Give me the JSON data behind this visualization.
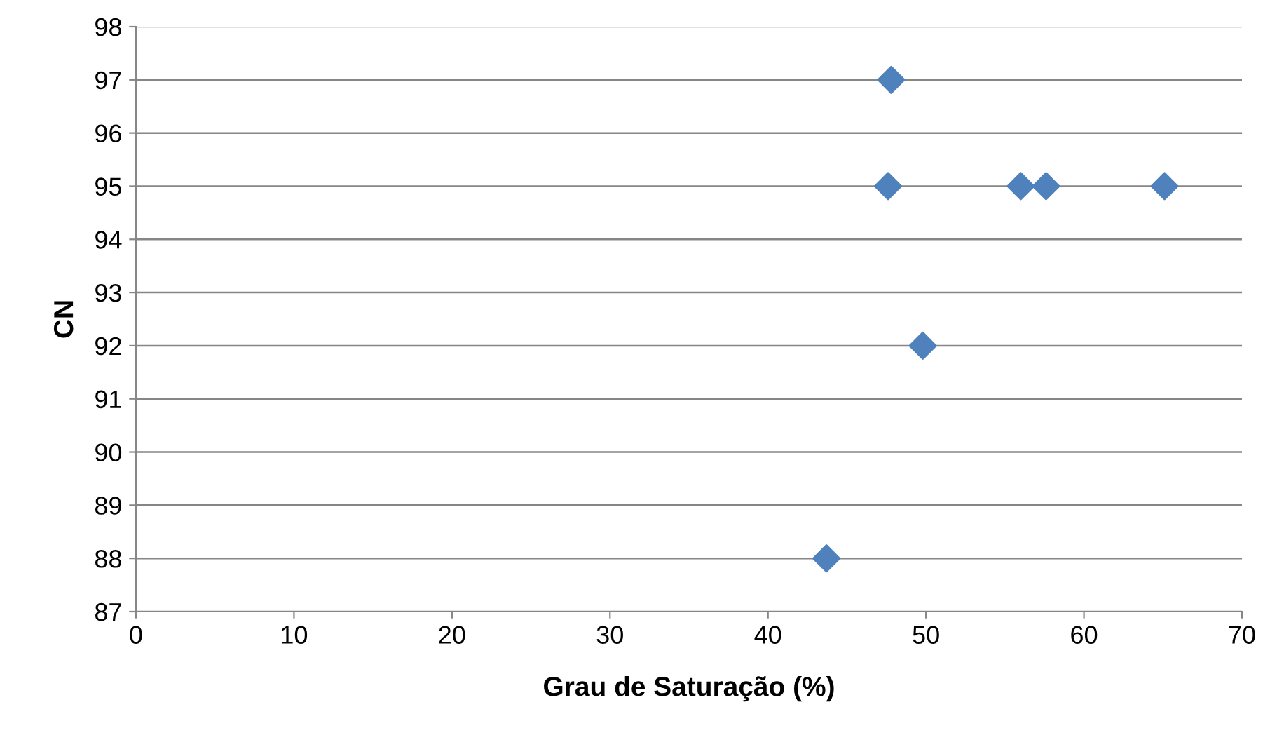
{
  "chart_data": {
    "type": "scatter",
    "xlabel": "Grau de Saturação (%)",
    "ylabel": "CN",
    "x": [
      47.8,
      47.6,
      56.0,
      57.6,
      65.1,
      49.8,
      43.7
    ],
    "series": [
      {
        "color": "#4f81bd",
        "values": [
          97,
          95,
          95,
          95,
          95,
          92,
          88
        ]
      }
    ],
    "xlim": [
      0,
      70
    ],
    "xticks": [
      0,
      10,
      20,
      30,
      40,
      50,
      60,
      70
    ],
    "ylim": [
      87,
      98
    ],
    "yticks": [
      87,
      88,
      89,
      90,
      91,
      92,
      93,
      94,
      95,
      96,
      97,
      98
    ],
    "grid": "y",
    "marker": "diamond",
    "legend": false
  }
}
